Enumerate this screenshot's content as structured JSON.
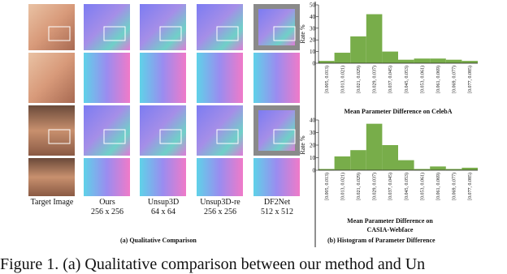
{
  "panel_a": {
    "columns": [
      {
        "name": "Target Image"
      },
      {
        "name": "Ours",
        "resolution": "256 x 256"
      },
      {
        "name": "Unsup3D",
        "resolution": "64 x 64"
      },
      {
        "name": "Unsup3D-re",
        "resolution": "256 x 256"
      },
      {
        "name": "DF2Net",
        "resolution": "512 x 512"
      }
    ],
    "caption": "(a) Qualitative Comparison"
  },
  "panel_b": {
    "caption": "(b) Histogram of Parameter Difference"
  },
  "chart_data": [
    {
      "type": "bar",
      "y_label": "Rate %",
      "x_label": "Mean Parameter Difference on CelebA",
      "categories": [
        "[0.005, 0.013)",
        "[0.013, 0.021)",
        "[0.021, 0.029)",
        "[0.029, 0.037)",
        "[0.037, 0.045)",
        "[0.045, 0.053)",
        "[0.053, 0.061)",
        "[0.061, 0.069)",
        "[0.069, 0.077)",
        "[0.077, 0.085)"
      ],
      "values": [
        2,
        9,
        23,
        42,
        10,
        3,
        4,
        4,
        3,
        2
      ],
      "color": "#78ad4a",
      "ylim": [
        0,
        50
      ],
      "yticks": [
        0,
        10,
        20,
        30,
        40,
        50
      ]
    },
    {
      "type": "bar",
      "y_label": "Rate %",
      "x_label": "Mean Parameter Difference on CASIA-Webface",
      "categories": [
        "[0.005, 0.013)",
        "[0.013, 0.021)",
        "[0.021, 0.029)",
        "[0.029, 0.037)",
        "[0.037, 0.045)",
        "[0.045, 0.053)",
        "[0.053, 0.061)",
        "[0.061, 0.069)",
        "[0.069, 0.077)",
        "[0.077, 0.085)"
      ],
      "values": [
        1,
        11,
        16,
        37,
        20,
        8,
        1,
        3,
        1,
        2
      ],
      "color": "#78ad4a",
      "ylim": [
        0,
        40
      ],
      "yticks": [
        0,
        10,
        20,
        30,
        40
      ]
    }
  ],
  "figure_caption": "Figure 1. (a) Qualitative comparison between our method and Un"
}
